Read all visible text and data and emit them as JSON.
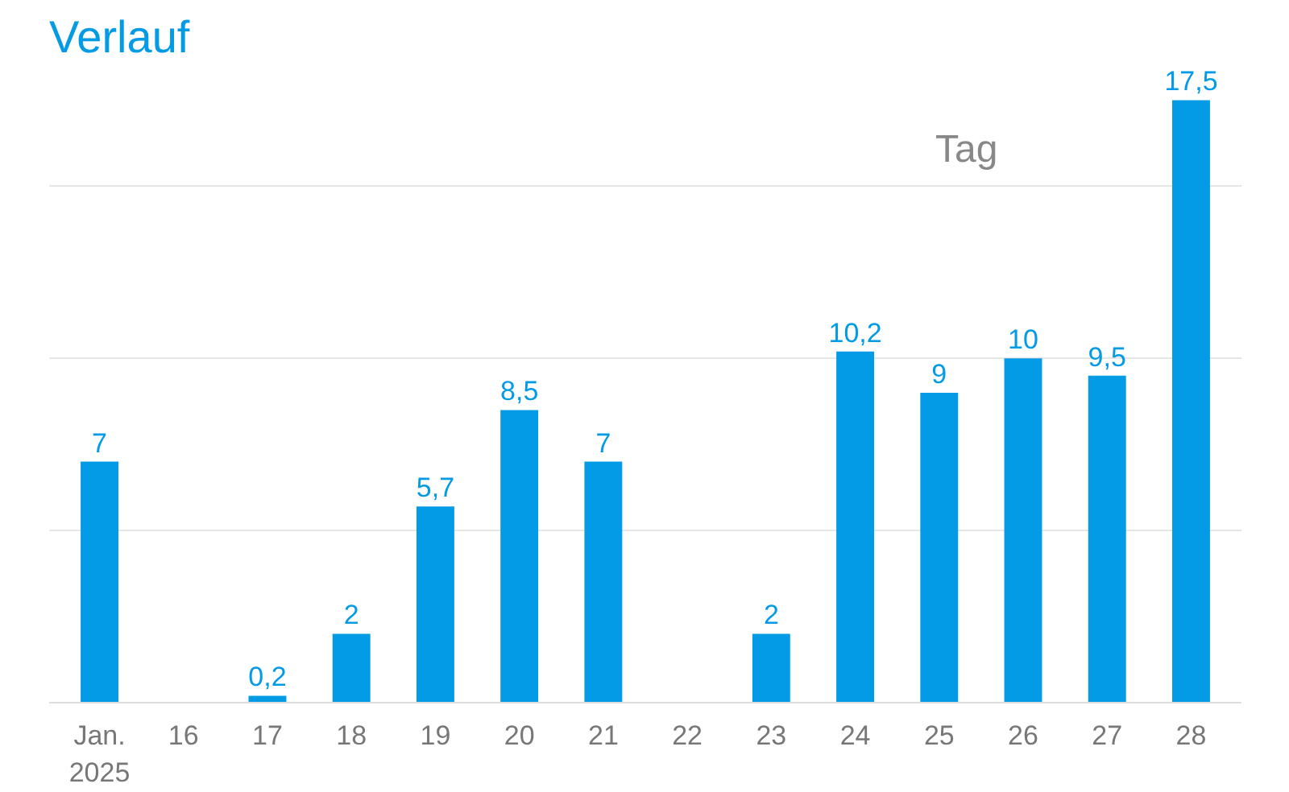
{
  "chart_data": {
    "type": "bar",
    "title": "Verlauf",
    "annotations": [
      "Tag"
    ],
    "categories": [
      "Jan.\n2025",
      "16",
      "17",
      "18",
      "19",
      "20",
      "21",
      "22",
      "23",
      "24",
      "25",
      "26",
      "27",
      "28"
    ],
    "values": [
      7,
      null,
      0.2,
      2,
      5.7,
      8.5,
      7,
      null,
      2,
      10.2,
      9,
      10,
      9.5,
      17.5
    ],
    "value_labels": [
      "7",
      null,
      "0,2",
      "2",
      "5,7",
      "8,5",
      "7",
      null,
      "2",
      "10,2",
      "9",
      "10",
      "9,5",
      "17,5"
    ],
    "color": "#039be5",
    "grid": "y",
    "tick_labels": "x"
  }
}
